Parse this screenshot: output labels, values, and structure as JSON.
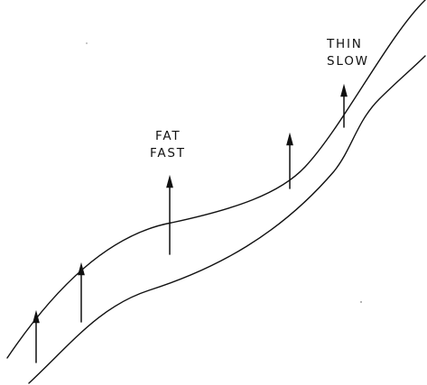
{
  "diagram": {
    "labels": {
      "fat_fast_line1": "FAT",
      "fat_fast_line2": "FAST",
      "thin_slow_line1": "THIN",
      "thin_slow_line2": "SLOW"
    },
    "arrow_count": 5,
    "curve_count": 2,
    "colors": {
      "ink": "#111111",
      "background": "#ffffff"
    }
  }
}
